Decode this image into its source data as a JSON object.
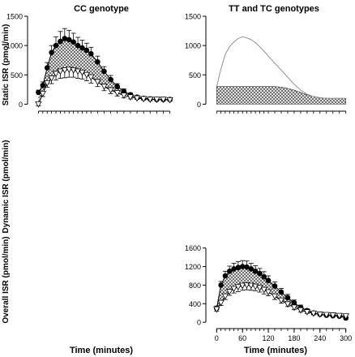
{
  "figure": {
    "col_titles": [
      "CC genotype",
      "TT and TC genotypes"
    ],
    "row_ylabels": [
      "Static ISR (pmol/min)",
      "Dynamic ISR (pmol/min)",
      "Overall ISR (pmol/min)"
    ],
    "xlabels": [
      "Time (minutes)",
      "Time (minutes)"
    ]
  },
  "colors": {
    "axis": "#000000",
    "filled_marker": "#000000",
    "open_marker": "#ffffff",
    "hatch": "#555555",
    "thin_line": "#888888"
  },
  "chart_data": [
    {
      "type": "line",
      "panel": "static-cc",
      "title": "CC genotype",
      "ylabel": "Static ISR (pmol/min)",
      "xlim": [
        -10,
        310
      ],
      "ylim": [
        -50,
        1500
      ],
      "yticks": [
        0,
        500,
        1000,
        1500
      ],
      "x": [
        0,
        10,
        20,
        30,
        40,
        50,
        60,
        70,
        80,
        90,
        100,
        110,
        120,
        135,
        150,
        165,
        180,
        195,
        210,
        225,
        240,
        255,
        270,
        285,
        300
      ],
      "series": [
        {
          "marker": "filled-circle",
          "values": [
            200,
            320,
            620,
            880,
            1000,
            1070,
            1120,
            1100,
            1060,
            1000,
            960,
            920,
            860,
            720,
            560,
            420,
            300,
            220,
            160,
            120,
            100,
            90,
            80,
            80,
            80
          ],
          "error": [
            40,
            60,
            90,
            120,
            150,
            170,
            170,
            160,
            150,
            140,
            130,
            120,
            110,
            100,
            80,
            70,
            50,
            40,
            30,
            25,
            20,
            20,
            20,
            20,
            20
          ]
        },
        {
          "marker": "open-triangle-down",
          "values": [
            0,
            180,
            360,
            440,
            520,
            560,
            580,
            590,
            580,
            560,
            540,
            500,
            460,
            380,
            300,
            240,
            190,
            150,
            120,
            100,
            90,
            80,
            80,
            80,
            70
          ],
          "error": [
            30,
            50,
            70,
            90,
            110,
            120,
            130,
            130,
            120,
            120,
            110,
            100,
            100,
            80,
            70,
            60,
            50,
            40,
            30,
            20,
            20,
            20,
            20,
            20,
            20
          ]
        }
      ]
    },
    {
      "type": "line",
      "panel": "static-tt-tc",
      "title": "TT and TC genotypes",
      "xlim": [
        -10,
        310
      ],
      "ylim": [
        -50,
        1500
      ],
      "yticks": [
        0,
        500,
        1000,
        1500
      ],
      "x": [
        0,
        10,
        20,
        30,
        40,
        50,
        60,
        70,
        80,
        90,
        100,
        110,
        120,
        135,
        150,
        165,
        180,
        195,
        210,
        225,
        240,
        255,
        270,
        285,
        300
      ],
      "series": [
        {
          "style": "thin-line",
          "values": [
            300,
            600,
            850,
            980,
            1060,
            1120,
            1150,
            1130,
            1100,
            1050,
            980,
            900,
            820,
            700,
            580,
            460,
            340,
            240,
            170,
            130,
            110,
            100,
            100,
            100,
            100
          ]
        },
        {
          "style": "hatched-baseline",
          "values": [
            300,
            300,
            300,
            300,
            300,
            300,
            300,
            300,
            300,
            300,
            300,
            300,
            300,
            300,
            290,
            270,
            240,
            200,
            160,
            130,
            110,
            100,
            100,
            100,
            100
          ]
        }
      ]
    },
    {
      "type": "line",
      "panel": "overall-tt-tc",
      "xlabel": "Time (minutes)",
      "xlim": [
        -10,
        310
      ],
      "ylim": [
        -50,
        1700
      ],
      "xticks": [
        0,
        60,
        120,
        180,
        240,
        300
      ],
      "yticks": [
        0,
        400,
        800,
        1200,
        1600
      ],
      "x": [
        0,
        10,
        20,
        30,
        40,
        50,
        60,
        70,
        80,
        90,
        100,
        110,
        120,
        135,
        150,
        165,
        180,
        195,
        210,
        225,
        240,
        255,
        270,
        285,
        300
      ],
      "series": [
        {
          "marker": "filled-circle",
          "values": [
            300,
            800,
            1000,
            1100,
            1150,
            1180,
            1200,
            1190,
            1150,
            1100,
            1050,
            980,
            900,
            780,
            650,
            530,
            420,
            320,
            250,
            200,
            170,
            150,
            140,
            130,
            90
          ],
          "error": [
            50,
            80,
            100,
            110,
            120,
            130,
            130,
            130,
            120,
            120,
            110,
            110,
            100,
            90,
            80,
            70,
            60,
            50,
            40,
            30,
            30,
            20,
            20,
            20,
            20
          ]
        },
        {
          "marker": "open-triangle-down",
          "values": [
            280,
            420,
            560,
            660,
            720,
            760,
            790,
            800,
            790,
            770,
            740,
            700,
            650,
            560,
            470,
            390,
            320,
            260,
            220,
            190,
            170,
            160,
            150,
            140,
            130
          ],
          "error": [
            40,
            60,
            70,
            80,
            90,
            100,
            100,
            100,
            100,
            90,
            90,
            90,
            80,
            70,
            60,
            50,
            50,
            40,
            30,
            30,
            20,
            20,
            20,
            20,
            20
          ]
        }
      ]
    }
  ]
}
